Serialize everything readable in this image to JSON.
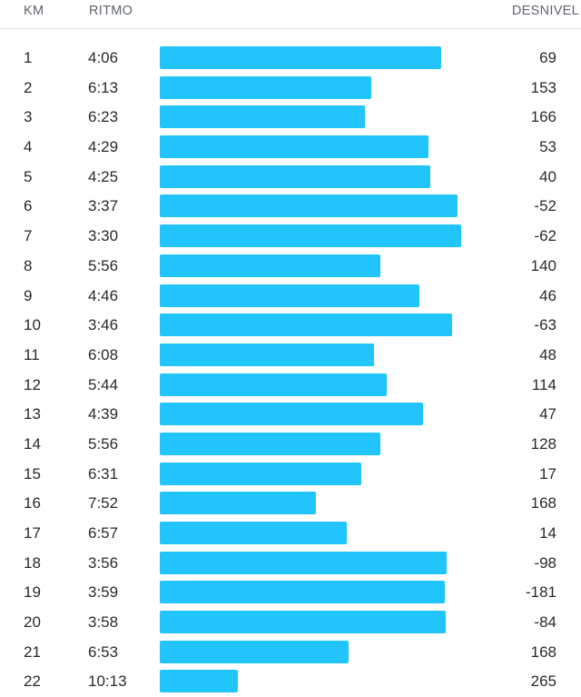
{
  "header": {
    "km": "KM",
    "pace": "RITMO",
    "elevation": "DESNIVEL"
  },
  "colors": {
    "bar": "#21c4fb",
    "header_text": "#5f6570",
    "divider": "#e6e6e6"
  },
  "splits": [
    {
      "km": "1",
      "pace": "4:06",
      "elevation": "69"
    },
    {
      "km": "2",
      "pace": "6:13",
      "elevation": "153"
    },
    {
      "km": "3",
      "pace": "6:23",
      "elevation": "166"
    },
    {
      "km": "4",
      "pace": "4:29",
      "elevation": "53"
    },
    {
      "km": "5",
      "pace": "4:25",
      "elevation": "40"
    },
    {
      "km": "6",
      "pace": "3:37",
      "elevation": "-52"
    },
    {
      "km": "7",
      "pace": "3:30",
      "elevation": "-62"
    },
    {
      "km": "8",
      "pace": "5:56",
      "elevation": "140"
    },
    {
      "km": "9",
      "pace": "4:46",
      "elevation": "46"
    },
    {
      "km": "10",
      "pace": "3:46",
      "elevation": "-63"
    },
    {
      "km": "11",
      "pace": "6:08",
      "elevation": "48"
    },
    {
      "km": "12",
      "pace": "5:44",
      "elevation": "114"
    },
    {
      "km": "13",
      "pace": "4:39",
      "elevation": "47"
    },
    {
      "km": "14",
      "pace": "5:56",
      "elevation": "128"
    },
    {
      "km": "15",
      "pace": "6:31",
      "elevation": "17"
    },
    {
      "km": "16",
      "pace": "7:52",
      "elevation": "168"
    },
    {
      "km": "17",
      "pace": "6:57",
      "elevation": "14"
    },
    {
      "km": "18",
      "pace": "3:56",
      "elevation": "-98"
    },
    {
      "km": "19",
      "pace": "3:59",
      "elevation": "-181"
    },
    {
      "km": "20",
      "pace": "3:58",
      "elevation": "-84"
    },
    {
      "km": "21",
      "pace": "6:53",
      "elevation": "168"
    },
    {
      "km": "22",
      "pace": "10:13",
      "elevation": "265"
    }
  ]
}
